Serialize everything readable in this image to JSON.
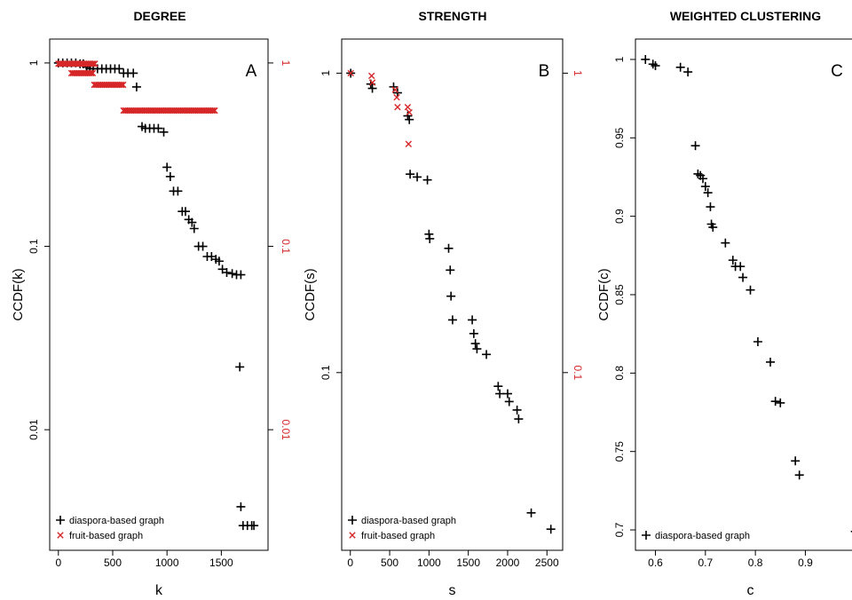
{
  "chart_data": [
    {
      "type": "scatter",
      "title": "DEGREE",
      "panel_label": "A",
      "xlabel": "k",
      "ylabel": "CCDF(k)",
      "y_scale": "log",
      "xlim": [
        -80,
        1930
      ],
      "ylim": [
        0.0022,
        1.35
      ],
      "x_ticks": [
        0,
        500,
        1000,
        1500
      ],
      "x_tick_labels": [
        "0",
        "500",
        "1000",
        "1500"
      ],
      "y_ticks": [
        1,
        0.1,
        0.01
      ],
      "y_tick_labels": [
        "1",
        "0.1",
        "0.01"
      ],
      "right_y_ticks": [
        1,
        0.1,
        0.01
      ],
      "right_y_tick_labels": [
        "1",
        "0.1",
        "0.01"
      ],
      "right_axis_color": "#d62728",
      "legend": [
        "diaspora-based graph",
        "fruit-based graph"
      ],
      "legend_position": "bottom-left",
      "series": [
        {
          "name": "diaspora-based graph",
          "marker": "+",
          "color": "#000000",
          "points": [
            [
              0,
              1
            ],
            [
              40,
              1
            ],
            [
              80,
              1
            ],
            [
              120,
              1
            ],
            [
              160,
              1
            ],
            [
              200,
              0.99
            ],
            [
              230,
              0.99
            ],
            [
              260,
              0.95
            ],
            [
              290,
              0.93
            ],
            [
              320,
              0.93
            ],
            [
              360,
              0.93
            ],
            [
              400,
              0.93
            ],
            [
              440,
              0.93
            ],
            [
              480,
              0.93
            ],
            [
              520,
              0.93
            ],
            [
              560,
              0.93
            ],
            [
              600,
              0.88
            ],
            [
              640,
              0.88
            ],
            [
              690,
              0.88
            ],
            [
              720,
              0.74
            ],
            [
              770,
              0.45
            ],
            [
              800,
              0.44
            ],
            [
              840,
              0.44
            ],
            [
              880,
              0.44
            ],
            [
              920,
              0.44
            ],
            [
              970,
              0.42
            ],
            [
              1000,
              0.27
            ],
            [
              1030,
              0.24
            ],
            [
              1060,
              0.2
            ],
            [
              1100,
              0.2
            ],
            [
              1140,
              0.155
            ],
            [
              1170,
              0.155
            ],
            [
              1200,
              0.14
            ],
            [
              1230,
              0.135
            ],
            [
              1250,
              0.125
            ],
            [
              1290,
              0.1
            ],
            [
              1330,
              0.1
            ],
            [
              1370,
              0.088
            ],
            [
              1410,
              0.088
            ],
            [
              1450,
              0.085
            ],
            [
              1480,
              0.083
            ],
            [
              1510,
              0.075
            ],
            [
              1550,
              0.072
            ],
            [
              1600,
              0.071
            ],
            [
              1640,
              0.07
            ],
            [
              1680,
              0.07
            ],
            [
              1670,
              0.022
            ],
            [
              1680,
              0.0038
            ],
            [
              1700,
              0.003
            ],
            [
              1740,
              0.003
            ],
            [
              1780,
              0.003
            ],
            [
              1800,
              0.003
            ]
          ]
        },
        {
          "name": "fruit-based graph",
          "marker": "x",
          "color": "#d62728",
          "segments": [
            [
              0,
              340,
              0.99
            ],
            [
              120,
              320,
              0.88
            ],
            [
              330,
              600,
              0.76
            ],
            [
              600,
              1440,
              0.55
            ]
          ]
        }
      ]
    },
    {
      "type": "scatter",
      "title": "STRENGTH",
      "panel_label": "B",
      "xlabel": "s",
      "ylabel": "CCDF(s)",
      "y_scale": "log",
      "xlim": [
        -110,
        2700
      ],
      "ylim": [
        0.0255,
        1.3
      ],
      "x_ticks": [
        0,
        500,
        1000,
        1500,
        2000,
        2500
      ],
      "x_tick_labels": [
        "0",
        "500",
        "1000",
        "1500",
        "2000",
        "2500"
      ],
      "y_ticks": [
        1,
        0.1
      ],
      "y_tick_labels": [
        "1",
        "0.1"
      ],
      "right_y_ticks": [
        1,
        0.1
      ],
      "right_y_tick_labels": [
        "1",
        "0.1"
      ],
      "right_axis_color": "#d62728",
      "legend": [
        "diaspora-based graph",
        "fruit-based graph"
      ],
      "legend_position": "bottom-left",
      "series": [
        {
          "name": "diaspora-based graph",
          "marker": "+",
          "color": "#000000",
          "points": [
            [
              5,
              1
            ],
            [
              260,
              0.92
            ],
            [
              280,
              0.89
            ],
            [
              550,
              0.9
            ],
            [
              600,
              0.86
            ],
            [
              730,
              0.72
            ],
            [
              750,
              0.7
            ],
            [
              760,
              0.46
            ],
            [
              850,
              0.45
            ],
            [
              980,
              0.44
            ],
            [
              1000,
              0.29
            ],
            [
              1010,
              0.28
            ],
            [
              1250,
              0.26
            ],
            [
              1270,
              0.22
            ],
            [
              1280,
              0.18
            ],
            [
              1300,
              0.15
            ],
            [
              1550,
              0.15
            ],
            [
              1570,
              0.135
            ],
            [
              1590,
              0.125
            ],
            [
              1610,
              0.12
            ],
            [
              1730,
              0.115
            ],
            [
              1880,
              0.09
            ],
            [
              1900,
              0.085
            ],
            [
              2000,
              0.085
            ],
            [
              2020,
              0.08
            ],
            [
              2120,
              0.075
            ],
            [
              2140,
              0.07
            ],
            [
              2300,
              0.034
            ],
            [
              2550,
              0.03
            ]
          ]
        },
        {
          "name": "fruit-based graph",
          "marker": "x",
          "color": "#d62728",
          "points": [
            [
              5,
              1
            ],
            [
              270,
              0.98
            ],
            [
              280,
              0.93
            ],
            [
              570,
              0.88
            ],
            [
              590,
              0.83
            ],
            [
              600,
              0.77
            ],
            [
              730,
              0.77
            ],
            [
              750,
              0.74
            ],
            [
              740,
              0.58
            ]
          ]
        }
      ]
    },
    {
      "type": "scatter",
      "title": "WEIGHTED CLUSTERING",
      "panel_label": "C",
      "xlabel": "c",
      "ylabel": "CCDF(c)",
      "y_scale": "linear",
      "xlim": [
        0.56,
        1.02
      ],
      "ylim": [
        0.687,
        1.013
      ],
      "x_ticks": [
        0.6,
        0.7,
        0.8,
        0.9,
        1.0
      ],
      "x_tick_labels": [
        "0.6",
        "0.7",
        "0.8",
        "0.9",
        "1"
      ],
      "y_ticks": [
        0.7,
        0.75,
        0.8,
        0.85,
        0.9,
        0.95,
        1.0
      ],
      "y_tick_labels": [
        "0.7",
        "0.75",
        "0.8",
        "0.85",
        "0.9",
        "0.95",
        "1"
      ],
      "legend": [
        "diaspora-based graph"
      ],
      "legend_position": "bottom-left",
      "series": [
        {
          "name": "diaspora-based graph",
          "marker": "+",
          "color": "#000000",
          "points": [
            [
              0.58,
              1
            ],
            [
              0.595,
              0.997
            ],
            [
              0.6,
              0.996
            ],
            [
              0.65,
              0.995
            ],
            [
              0.665,
              0.992
            ],
            [
              0.68,
              0.945
            ],
            [
              0.685,
              0.927
            ],
            [
              0.69,
              0.926
            ],
            [
              0.695,
              0.924
            ],
            [
              0.7,
              0.919
            ],
            [
              0.705,
              0.915
            ],
            [
              0.71,
              0.906
            ],
            [
              0.712,
              0.895
            ],
            [
              0.715,
              0.893
            ],
            [
              0.74,
              0.883
            ],
            [
              0.755,
              0.872
            ],
            [
              0.76,
              0.868
            ],
            [
              0.77,
              0.868
            ],
            [
              0.775,
              0.861
            ],
            [
              0.79,
              0.853
            ],
            [
              0.805,
              0.82
            ],
            [
              0.83,
              0.807
            ],
            [
              0.84,
              0.782
            ],
            [
              0.85,
              0.781
            ],
            [
              0.88,
              0.744
            ],
            [
              0.888,
              0.735
            ],
            [
              1.0,
              0.699
            ]
          ]
        }
      ]
    }
  ]
}
